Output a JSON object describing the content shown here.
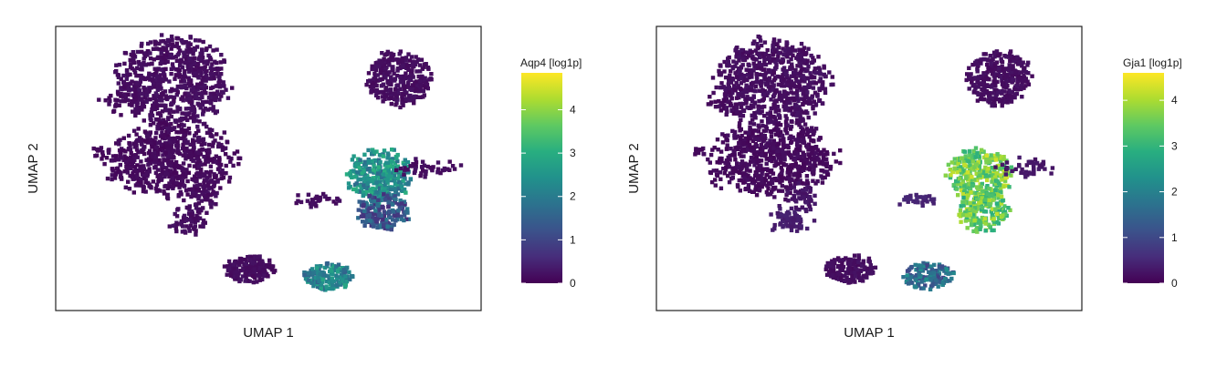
{
  "chart_data": [
    {
      "type": "scatter",
      "subtype": "umap-hexbin",
      "title": "",
      "xlabel": "UMAP 1",
      "ylabel": "UMAP 2",
      "colorbar": {
        "label": "Aqp4 [log1p]",
        "ticks": [
          "0",
          "1",
          "2",
          "3",
          "4"
        ],
        "tick_values": [
          0,
          1,
          2,
          3,
          4
        ],
        "range": [
          0,
          4.85
        ],
        "colormap": "viridis"
      },
      "clusters": [
        {
          "x": 2.4,
          "y": 8.6,
          "value": 0.1
        },
        {
          "x": 2.4,
          "y": 5.5,
          "value": 0.05
        },
        {
          "x": 1.2,
          "y": 7.8,
          "value": 0.05
        },
        {
          "x": 2.9,
          "y": 3.1,
          "value": 0.1
        },
        {
          "x": 4.5,
          "y": 1.1,
          "value": 0.1
        },
        {
          "x": 3.2,
          "y": 4.0,
          "value": 0.1
        },
        {
          "x": 0.4,
          "y": 5.8,
          "value": 0.05
        },
        {
          "x": 8.5,
          "y": 8.8,
          "value": 0.1
        },
        {
          "x": 8.0,
          "y": 4.9,
          "value": 2.4
        },
        {
          "x": 8.1,
          "y": 3.4,
          "value": 1.3
        },
        {
          "x": 6.3,
          "y": 3.9,
          "value": 0.1
        },
        {
          "x": 6.6,
          "y": 0.8,
          "value": 2.2
        },
        {
          "x": 9.2,
          "y": 5.2,
          "value": 0.1
        }
      ]
    },
    {
      "type": "scatter",
      "subtype": "umap-hexbin",
      "title": "",
      "xlabel": "UMAP 1",
      "ylabel": "UMAP 2",
      "colorbar": {
        "label": "Gja1 [log1p]",
        "ticks": [
          "0",
          "1",
          "2",
          "3",
          "4"
        ],
        "tick_values": [
          0,
          1,
          2,
          3,
          4
        ],
        "range": [
          0,
          4.6
        ],
        "colormap": "viridis"
      },
      "clusters": [
        {
          "x": 2.4,
          "y": 8.6,
          "value": 0.1
        },
        {
          "x": 2.4,
          "y": 5.5,
          "value": 0.05
        },
        {
          "x": 1.2,
          "y": 7.8,
          "value": 0.05
        },
        {
          "x": 2.9,
          "y": 3.1,
          "value": 0.3
        },
        {
          "x": 4.5,
          "y": 1.1,
          "value": 0.1
        },
        {
          "x": 3.2,
          "y": 4.0,
          "value": 0.2
        },
        {
          "x": 0.4,
          "y": 5.8,
          "value": 0.05
        },
        {
          "x": 8.5,
          "y": 8.8,
          "value": 0.1
        },
        {
          "x": 8.0,
          "y": 4.9,
          "value": 3.6
        },
        {
          "x": 8.1,
          "y": 3.4,
          "value": 3.5
        },
        {
          "x": 6.3,
          "y": 3.9,
          "value": 0.4
        },
        {
          "x": 6.6,
          "y": 0.8,
          "value": 1.6
        },
        {
          "x": 9.2,
          "y": 5.2,
          "value": 0.2
        }
      ]
    }
  ]
}
